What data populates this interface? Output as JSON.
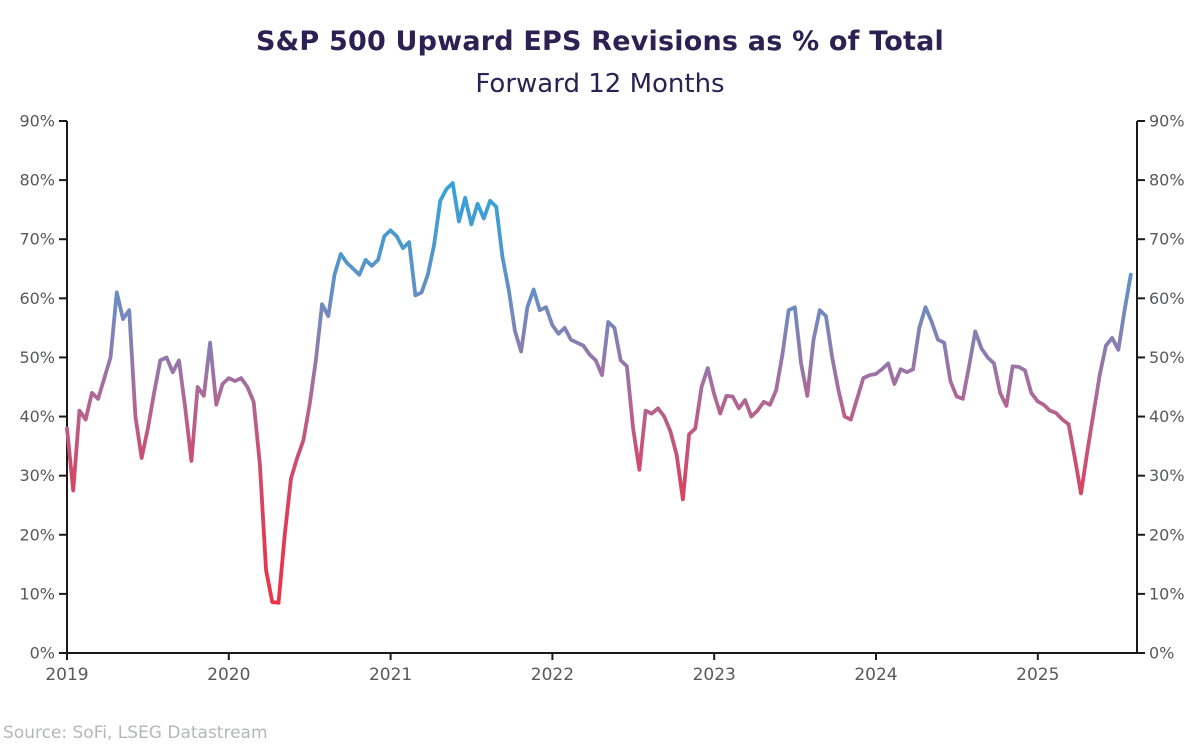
{
  "header": {
    "title": "S&P 500 Upward EPS Revisions as % of Total",
    "subtitle": "Forward 12 Months"
  },
  "footer": {
    "source": "Source: SoFi, LSEG Datastream"
  },
  "colors": {
    "title_text": "#2b2253",
    "axis": "#1a1a1a",
    "tick_label": "#58595b",
    "source_text": "#b4b6b8",
    "line_gradient": [
      {
        "value": 0,
        "color": "#f5293c"
      },
      {
        "value": 10,
        "color": "#ee3347"
      },
      {
        "value": 20,
        "color": "#e23a54"
      },
      {
        "value": 27,
        "color": "#d84462"
      },
      {
        "value": 35,
        "color": "#c75377"
      },
      {
        "value": 40,
        "color": "#b8608b"
      },
      {
        "value": 45,
        "color": "#a76d9d"
      },
      {
        "value": 50,
        "color": "#9179ac"
      },
      {
        "value": 55,
        "color": "#7d84b7"
      },
      {
        "value": 60,
        "color": "#6a8dc1"
      },
      {
        "value": 65,
        "color": "#5794c9"
      },
      {
        "value": 72,
        "color": "#449cd2"
      },
      {
        "value": 80,
        "color": "#35a4d9"
      },
      {
        "value": 90,
        "color": "#2cabdf"
      }
    ]
  },
  "chart_data": {
    "type": "line",
    "title": "S&P 500 Upward EPS Revisions as % of Total",
    "subtitle": "Forward 12 Months",
    "xlabel": "",
    "ylabel": "",
    "grid": false,
    "legend": "none",
    "ylim": [
      0,
      90
    ],
    "y_tick_step": 10,
    "y_ticks_left": [
      "0%",
      "10%",
      "20%",
      "30%",
      "40%",
      "50%",
      "60%",
      "70%",
      "80%",
      "90%"
    ],
    "y_ticks_right": [
      "0%",
      "10%",
      "20%",
      "30%",
      "40%",
      "50%",
      "60%",
      "70%",
      "80%",
      "90%"
    ],
    "x_ticks": [
      "2019",
      "2020",
      "2021",
      "2022",
      "2023",
      "2024",
      "2025"
    ],
    "x_range": [
      2019.0,
      2025.57
    ],
    "series": [
      {
        "name": "Upward EPS revisions as % of total, forward 12 months",
        "sampling": "approx. biweekly from Jan 2019 to mid 2025",
        "unit": "%",
        "values": [
          38,
          27.5,
          41,
          39.5,
          44,
          43,
          46.5,
          50,
          61,
          56.5,
          58,
          40,
          33,
          38,
          44,
          49.5,
          50,
          47.5,
          49.5,
          41.5,
          32.5,
          45,
          43.5,
          52.5,
          42,
          45.5,
          46.5,
          46,
          46.5,
          45,
          42.5,
          32,
          14,
          8.6,
          8.5,
          20,
          29.5,
          33,
          36,
          42,
          49.5,
          59,
          57,
          64,
          67.5,
          66,
          65,
          64,
          66.5,
          65.5,
          66.5,
          70.5,
          71.5,
          70.5,
          68.5,
          69.5,
          60.5,
          61,
          64,
          69,
          76.5,
          78.5,
          79.5,
          73,
          77,
          72.5,
          76,
          73.5,
          76.5,
          75.5,
          67,
          61.5,
          54.5,
          51,
          58.5,
          61.5,
          58,
          58.5,
          55.5,
          54,
          55,
          53,
          52.5,
          52,
          50.5,
          49.5,
          47,
          56,
          55,
          49.5,
          48.5,
          38,
          31,
          41,
          40.5,
          41.4,
          40,
          37.5,
          33.5,
          26,
          37,
          38,
          45,
          48.2,
          43.9,
          40.5,
          43.5,
          43.4,
          41.4,
          42.8,
          40,
          41,
          42.5,
          42,
          44.5,
          50.5,
          58,
          58.5,
          49,
          43.5,
          53,
          58,
          57,
          50,
          44.5,
          40,
          39.5,
          43,
          46.5,
          47,
          47.2,
          48,
          49,
          45.5,
          48,
          47.5,
          48,
          55,
          58.5,
          56,
          53,
          52.5,
          46,
          43.4,
          43,
          48.5,
          54.4,
          51.5,
          50,
          49,
          44,
          41.8,
          48.5,
          48.4,
          47.8,
          44,
          42.6,
          42,
          41,
          40.6,
          39.5,
          38.7,
          33,
          27,
          34,
          40.5,
          47,
          52,
          53.3,
          51.3,
          58,
          64
        ]
      }
    ]
  }
}
